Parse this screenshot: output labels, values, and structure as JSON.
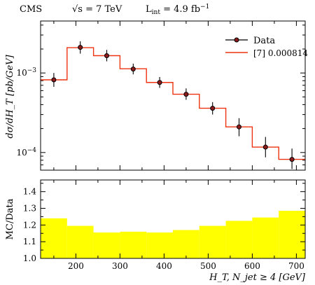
{
  "header": {
    "experiment": "CMS",
    "energy": "√s = 7 TeV",
    "lumi": "L",
    "lumi_sub": "int",
    "lumi_value": " = 4.9 fb",
    "lumi_exp": "−1"
  },
  "chart_data": [
    {
      "type": "line",
      "panel": "main",
      "ylabel": "dσ/dH_T [pb/GeV]",
      "yscale": "log",
      "ylim": [
        6e-05,
        0.0045
      ],
      "xlim": [
        120,
        720
      ],
      "yticks": [
        {
          "value": 0.001,
          "base": "10",
          "exp": "−3"
        },
        {
          "value": 0.0001,
          "base": "10",
          "exp": "−4"
        }
      ],
      "bin_edges": [
        120,
        180,
        240,
        300,
        360,
        420,
        480,
        540,
        600,
        660,
        720
      ],
      "legend_position": "top-right",
      "series": [
        {
          "name": "Data",
          "style": "points-with-errors",
          "color": "#000000",
          "marker_fill": "#8b1a1a",
          "x": [
            150,
            210,
            270,
            330,
            390,
            450,
            510,
            570,
            630,
            690
          ],
          "y": [
            0.00082,
            0.0021,
            0.00165,
            0.00112,
            0.00076,
            0.00054,
            0.00036,
            0.00021,
            0.000117,
            8.2e-05
          ],
          "err_low": [
            0.00015,
            0.00035,
            0.00025,
            0.00016,
            0.00011,
            8e-05,
            6e-05,
            5e-05,
            3e-05,
            2e-05
          ],
          "err_high": [
            0.00018,
            0.0004,
            0.0003,
            0.00019,
            0.00013,
            0.0001,
            7e-05,
            6e-05,
            4e-05,
            3e-05
          ]
        },
        {
          "name": "[7] 0.000814",
          "style": "histogram",
          "color": "#ee3311",
          "values": [
            0.00082,
            0.00208,
            0.00165,
            0.00113,
            0.00076,
            0.00054,
            0.00036,
            0.00021,
            0.000117,
            8.2e-05
          ]
        }
      ]
    },
    {
      "type": "area",
      "panel": "ratio",
      "ylabel": "MC/Data",
      "xlabel": "H_T, N_jet ≥ 4 [GeV]",
      "xlim": [
        120,
        720
      ],
      "ylim": [
        1.0,
        1.47
      ],
      "xticks": [
        200,
        300,
        400,
        500,
        600,
        700
      ],
      "yticks": [
        1.0,
        1.1,
        1.2,
        1.3,
        1.4
      ],
      "bin_edges": [
        120,
        180,
        240,
        300,
        360,
        420,
        480,
        540,
        600,
        660,
        720
      ],
      "band_color": "#ffff00",
      "values": [
        1.24,
        1.195,
        1.155,
        1.16,
        1.155,
        1.17,
        1.195,
        1.225,
        1.245,
        1.285
      ]
    }
  ]
}
